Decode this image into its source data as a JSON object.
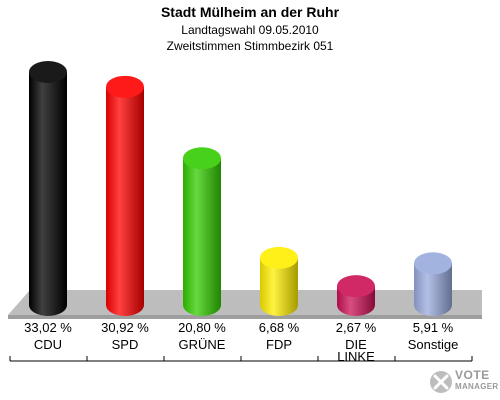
{
  "header": {
    "title": "Stadt Mülheim an der Ruhr",
    "subtitle1": "Landtagswahl 09.05.2010",
    "subtitle2": "Zweitstimmen Stimmbezirk 051"
  },
  "chart_data": {
    "type": "bar",
    "title": "Stadt Mülheim an der Ruhr",
    "subtitle": "Landtagswahl 09.05.2010 — Zweitstimmen Stimmbezirk 051",
    "categories": [
      "CDU",
      "SPD",
      "GRÜNE",
      "FDP",
      "DIE LINKE",
      "Sonstige"
    ],
    "category_lines": [
      [
        "CDU"
      ],
      [
        "SPD"
      ],
      [
        "GRÜNE"
      ],
      [
        "FDP"
      ],
      [
        "DIE",
        "LINKE"
      ],
      [
        "Sonstige"
      ]
    ],
    "values": [
      33.02,
      30.92,
      20.8,
      6.68,
      2.67,
      5.91
    ],
    "value_labels": [
      "33,02 %",
      "30,92 %",
      "20,80 %",
      "6,68 %",
      "2,67 %",
      "5,91 %"
    ],
    "colors": [
      "#000000",
      "#ff0000",
      "#33cc00",
      "#ffee00",
      "#cc1155",
      "#99aadd"
    ],
    "unit": "%",
    "grid": false,
    "legend": "none",
    "ylim": [
      0,
      33.02
    ]
  },
  "logo": {
    "line1": "VOTE",
    "line2": "MANAGER"
  }
}
